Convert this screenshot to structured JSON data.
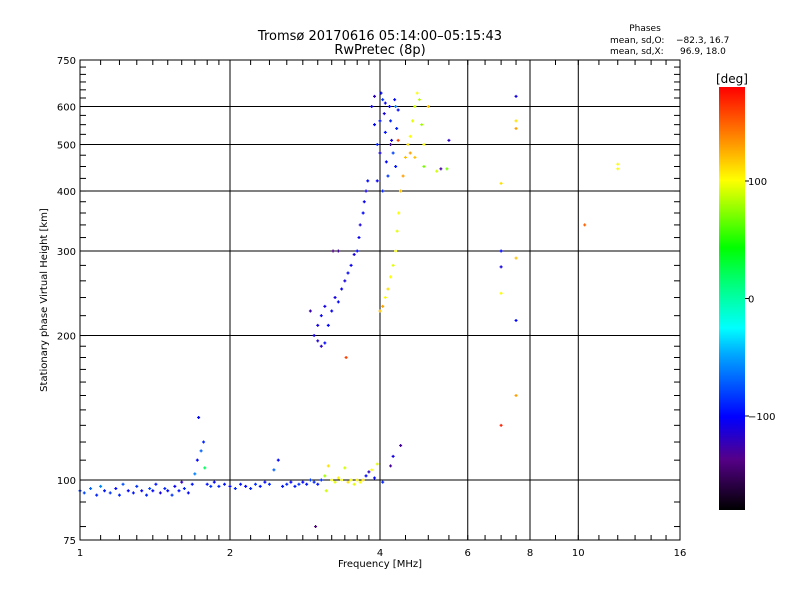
{
  "chart_data": {
    "type": "scatter",
    "title": "Tromsø 20170616 05:14:00–05:15:43",
    "subtitle": "RwPretec (8p)",
    "stats": {
      "heading": "Phases",
      "o_label": "mean, sd,O:",
      "o_value": "−82.3, 16.7",
      "x_label": "mean, sd,X:",
      "x_value": "96.9, 18.0"
    },
    "xlabel": "Frequency [MHz]",
    "ylabel": "Stationary phase Virtual Height [km]",
    "xscale": "log2",
    "yscale": "log2",
    "xlim": [
      1,
      16
    ],
    "ylim": [
      75,
      750
    ],
    "xticks": [
      1,
      2,
      4,
      6,
      8,
      10,
      16
    ],
    "xtick_labels": [
      "1",
      "2",
      "4",
      "6",
      "8",
      "10",
      "16"
    ],
    "yticks": [
      75,
      100,
      200,
      300,
      400,
      500,
      600,
      750
    ],
    "ytick_labels": [
      "75",
      "100",
      "200",
      "300",
      "400",
      "500",
      "600",
      "750"
    ],
    "grid": true,
    "colorbar": {
      "label": "[deg]",
      "range": [
        -180,
        180
      ],
      "ticks": [
        100,
        0,
        -100
      ],
      "tick_labels": [
        "100",
        "0",
        "−100"
      ]
    },
    "points_format": [
      "frequency_MHz",
      "height_km",
      "phase_deg"
    ],
    "points": [
      [
        1.0,
        95,
        -85
      ],
      [
        1.02,
        94,
        -80
      ],
      [
        1.05,
        96,
        -70
      ],
      [
        1.08,
        93,
        -90
      ],
      [
        1.1,
        97,
        -60
      ],
      [
        1.12,
        95,
        -95
      ],
      [
        1.15,
        94,
        -85
      ],
      [
        1.18,
        96,
        -100
      ],
      [
        1.2,
        93,
        -90
      ],
      [
        1.22,
        98,
        -75
      ],
      [
        1.25,
        95,
        -100
      ],
      [
        1.28,
        94,
        -95
      ],
      [
        1.3,
        97,
        -85
      ],
      [
        1.33,
        95,
        -105
      ],
      [
        1.36,
        93,
        -90
      ],
      [
        1.38,
        96,
        -80
      ],
      [
        1.4,
        95,
        -100
      ],
      [
        1.42,
        98,
        -95
      ],
      [
        1.45,
        94,
        -110
      ],
      [
        1.48,
        96,
        -90
      ],
      [
        1.5,
        95,
        -100
      ],
      [
        1.53,
        93,
        -85
      ],
      [
        1.55,
        97,
        -105
      ],
      [
        1.58,
        95,
        -95
      ],
      [
        1.6,
        99,
        -120
      ],
      [
        1.62,
        96,
        -90
      ],
      [
        1.65,
        94,
        -100
      ],
      [
        1.68,
        98,
        -95
      ],
      [
        1.7,
        103,
        -60
      ],
      [
        1.72,
        110,
        -100
      ],
      [
        1.75,
        115,
        -70
      ],
      [
        1.77,
        120,
        -90
      ],
      [
        1.73,
        135,
        -100
      ],
      [
        1.78,
        106,
        20
      ],
      [
        1.8,
        98,
        -95
      ],
      [
        1.83,
        97,
        -85
      ],
      [
        1.86,
        99,
        -100
      ],
      [
        1.9,
        97,
        -90
      ],
      [
        1.95,
        98,
        -95
      ],
      [
        2.0,
        97,
        -100
      ],
      [
        2.05,
        96,
        -90
      ],
      [
        2.1,
        98,
        -95
      ],
      [
        2.15,
        97,
        -100
      ],
      [
        2.2,
        96,
        -90
      ],
      [
        2.25,
        98,
        -85
      ],
      [
        2.3,
        97,
        -95
      ],
      [
        2.35,
        99,
        -100
      ],
      [
        2.4,
        98,
        -90
      ],
      [
        2.45,
        105,
        -70
      ],
      [
        2.5,
        110,
        -100
      ],
      [
        2.55,
        97,
        -95
      ],
      [
        2.6,
        98,
        -90
      ],
      [
        2.65,
        99,
        -100
      ],
      [
        2.7,
        97,
        -95
      ],
      [
        2.75,
        98,
        -85
      ],
      [
        2.8,
        99,
        -100
      ],
      [
        2.85,
        98,
        -95
      ],
      [
        2.9,
        100,
        -80
      ],
      [
        2.95,
        99,
        -90
      ],
      [
        2.97,
        80,
        -140
      ],
      [
        3.0,
        98,
        -95
      ],
      [
        3.05,
        100,
        -85
      ],
      [
        3.1,
        102,
        80
      ],
      [
        3.12,
        95,
        90
      ],
      [
        3.15,
        107,
        110
      ],
      [
        3.2,
        100,
        100
      ],
      [
        3.25,
        99,
        95
      ],
      [
        3.3,
        101,
        105
      ],
      [
        3.35,
        100,
        100
      ],
      [
        3.4,
        106,
        90
      ],
      [
        3.45,
        99,
        110
      ],
      [
        3.5,
        100,
        100
      ],
      [
        3.55,
        98,
        95
      ],
      [
        3.6,
        100,
        105
      ],
      [
        3.65,
        99,
        100
      ],
      [
        3.7,
        100,
        110
      ],
      [
        3.75,
        102,
        -100
      ],
      [
        3.8,
        104,
        -120
      ],
      [
        3.85,
        105,
        100
      ],
      [
        3.9,
        101,
        -100
      ],
      [
        3.95,
        108,
        95
      ],
      [
        4.05,
        99,
        -90
      ],
      [
        4.2,
        107,
        -130
      ],
      [
        4.4,
        118,
        -130
      ],
      [
        4.25,
        112,
        -110
      ],
      [
        2.95,
        200,
        -110
      ],
      [
        3.0,
        195,
        -115
      ],
      [
        3.05,
        190,
        -120
      ],
      [
        3.1,
        193,
        -100
      ],
      [
        3.0,
        210,
        -110
      ],
      [
        3.05,
        220,
        -105
      ],
      [
        3.1,
        230,
        -110
      ],
      [
        3.15,
        210,
        -100
      ],
      [
        3.2,
        225,
        -105
      ],
      [
        3.25,
        240,
        -110
      ],
      [
        3.3,
        235,
        -100
      ],
      [
        3.35,
        250,
        -105
      ],
      [
        3.4,
        260,
        -110
      ],
      [
        3.45,
        270,
        -100
      ],
      [
        3.5,
        280,
        -105
      ],
      [
        3.55,
        295,
        -110
      ],
      [
        3.6,
        300,
        -100
      ],
      [
        3.63,
        320,
        -105
      ],
      [
        3.65,
        340,
        -110
      ],
      [
        3.7,
        360,
        -100
      ],
      [
        3.72,
        380,
        -105
      ],
      [
        3.75,
        400,
        -110
      ],
      [
        3.78,
        420,
        -100
      ],
      [
        3.3,
        300,
        -130
      ],
      [
        3.22,
        300,
        -140
      ],
      [
        3.42,
        180,
        160
      ],
      [
        2.9,
        225,
        -125
      ],
      [
        3.85,
        600,
        -110
      ],
      [
        3.9,
        550,
        -100
      ],
      [
        3.95,
        500,
        -90
      ],
      [
        4.0,
        480,
        -110
      ],
      [
        4.02,
        640,
        -100
      ],
      [
        4.05,
        620,
        -85
      ],
      [
        4.08,
        580,
        -110
      ],
      [
        4.1,
        530,
        -95
      ],
      [
        4.12,
        460,
        -100
      ],
      [
        4.15,
        430,
        -85
      ],
      [
        4.18,
        600,
        -105
      ],
      [
        4.2,
        560,
        -90
      ],
      [
        4.22,
        510,
        -110
      ],
      [
        4.25,
        480,
        -80
      ],
      [
        4.28,
        620,
        -100
      ],
      [
        4.3,
        450,
        -95
      ],
      [
        4.32,
        540,
        -90
      ],
      [
        4.35,
        590,
        -100
      ],
      [
        3.95,
        420,
        -105
      ],
      [
        4.05,
        400,
        -90
      ],
      [
        3.9,
        630,
        -120
      ],
      [
        4.0,
        560,
        -95
      ],
      [
        4.1,
        610,
        -105
      ],
      [
        4.2,
        500,
        -130
      ],
      [
        4.35,
        510,
        160
      ],
      [
        4.3,
        600,
        -60
      ],
      [
        4.0,
        225,
        120
      ],
      [
        4.05,
        230,
        130
      ],
      [
        4.1,
        240,
        100
      ],
      [
        4.15,
        250,
        110
      ],
      [
        4.2,
        265,
        100
      ],
      [
        4.25,
        280,
        95
      ],
      [
        4.3,
        300,
        100
      ],
      [
        4.33,
        330,
        95
      ],
      [
        4.36,
        360,
        100
      ],
      [
        4.4,
        400,
        120
      ],
      [
        4.45,
        430,
        130
      ],
      [
        4.5,
        470,
        120
      ],
      [
        4.55,
        500,
        110
      ],
      [
        4.6,
        520,
        100
      ],
      [
        4.65,
        560,
        95
      ],
      [
        4.7,
        600,
        90
      ],
      [
        4.75,
        640,
        100
      ],
      [
        4.8,
        620,
        85
      ],
      [
        4.85,
        550,
        80
      ],
      [
        4.9,
        500,
        100
      ],
      [
        4.6,
        480,
        130
      ],
      [
        4.7,
        470,
        120
      ],
      [
        4.9,
        450,
        70
      ],
      [
        5.0,
        600,
        120
      ],
      [
        5.2,
        440,
        90
      ],
      [
        5.5,
        510,
        -120
      ],
      [
        5.45,
        445,
        70
      ],
      [
        5.3,
        445,
        -130
      ],
      [
        7.0,
        415,
        110
      ],
      [
        7.0,
        300,
        -100
      ],
      [
        7.0,
        278,
        -110
      ],
      [
        7.0,
        245,
        100
      ],
      [
        7.0,
        130,
        170
      ],
      [
        7.5,
        630,
        -110
      ],
      [
        7.5,
        560,
        110
      ],
      [
        7.5,
        540,
        130
      ],
      [
        7.5,
        290,
        120
      ],
      [
        7.5,
        215,
        -100
      ],
      [
        7.5,
        150,
        130
      ],
      [
        10.3,
        340,
        150
      ],
      [
        12.0,
        455,
        100
      ],
      [
        12.0,
        445,
        100
      ]
    ]
  }
}
